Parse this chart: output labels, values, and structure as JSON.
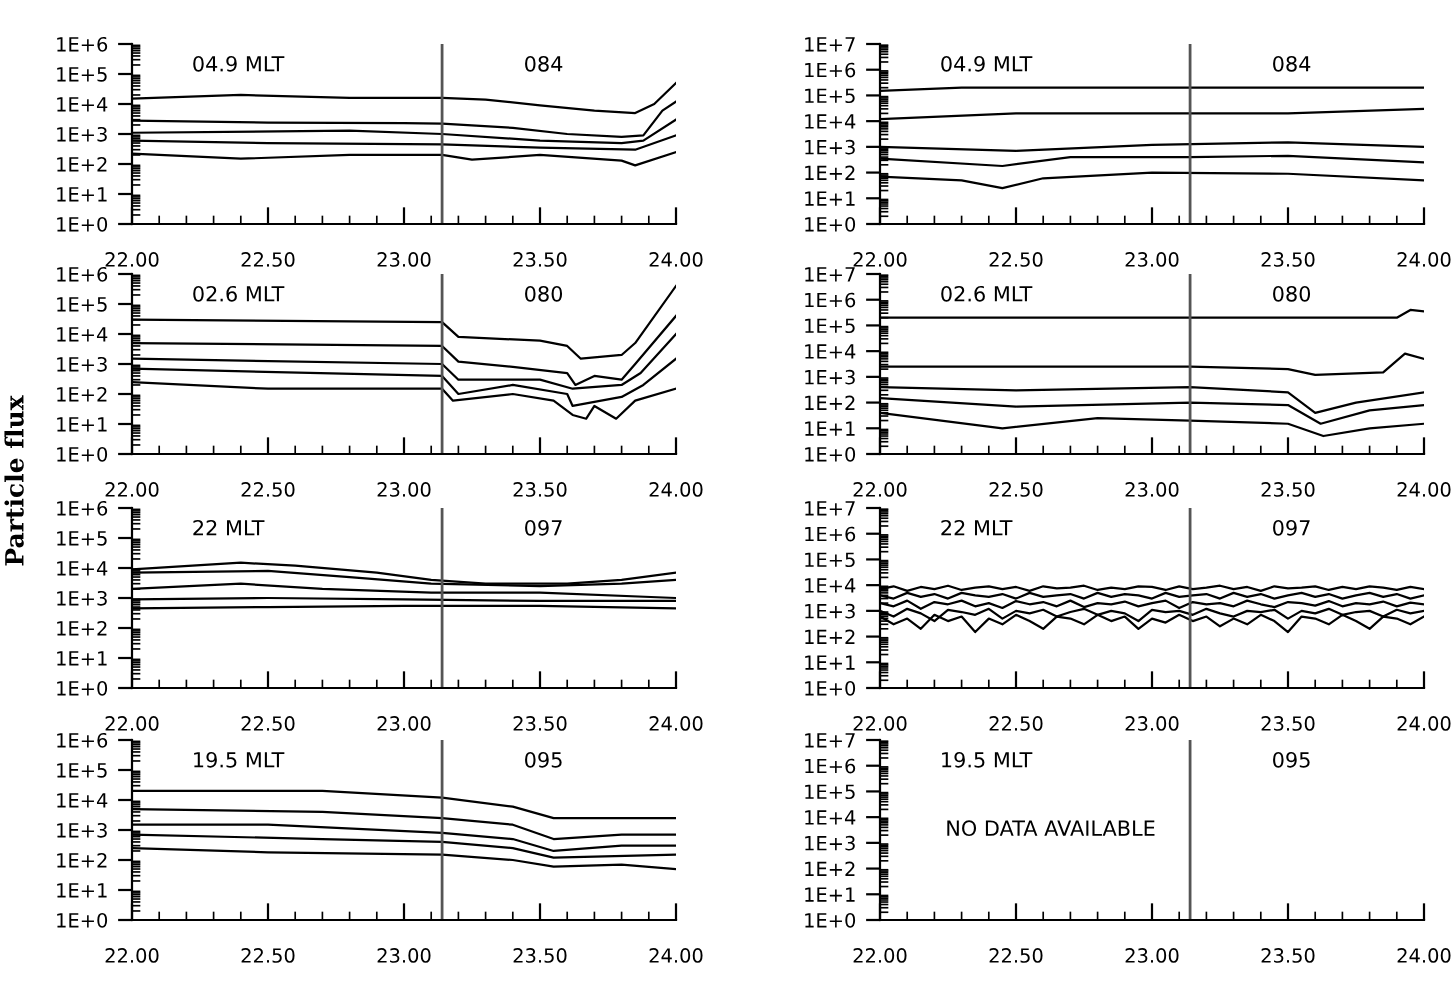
{
  "chart_data": [
    {
      "type": "line",
      "log": true,
      "xlim": [
        22,
        24
      ],
      "ylim": [
        1,
        1000000
      ],
      "xticks": [
        {
          "value": 22,
          "label": "22.00"
        },
        {
          "value": 22.5,
          "label": "22.50"
        },
        {
          "value": 23,
          "label": "23.00"
        },
        {
          "value": 23.5,
          "label": "23.50"
        },
        {
          "value": 24,
          "label": "24.00"
        }
      ],
      "yticks": [
        {
          "value": 1,
          "label": "1E+0"
        },
        {
          "value": 10,
          "label": "1E+1"
        },
        {
          "value": 100,
          "label": "1E+2"
        },
        {
          "value": 1000,
          "label": "1E+3"
        },
        {
          "value": 10000,
          "label": "1E+4"
        },
        {
          "value": 100000,
          "label": "1E+5"
        },
        {
          "value": 1000000,
          "label": "1E+6"
        }
      ],
      "annotations": [
        "04.9 MLT",
        "084"
      ],
      "ref_lines": [
        {
          "axis": "x",
          "value": 23.14,
          "color": "#555555"
        }
      ],
      "series": [
        {
          "color": "#000000",
          "x": [
            22,
            22.4,
            22.8,
            23.14,
            23.3,
            23.5,
            23.7,
            23.85,
            23.92,
            24
          ],
          "values": [
            15000,
            20000,
            16000,
            16000,
            14000,
            9000,
            6000,
            5000,
            10000,
            50000
          ]
        },
        {
          "color": "#000000",
          "x": [
            22,
            22.5,
            23,
            23.14,
            23.4,
            23.6,
            23.8,
            23.88,
            23.95,
            24
          ],
          "values": [
            2800,
            2400,
            2300,
            2200,
            1600,
            1000,
            800,
            900,
            6000,
            12000
          ]
        },
        {
          "color": "#000000",
          "x": [
            22,
            22.8,
            23.14,
            23.5,
            23.8,
            23.88,
            24
          ],
          "values": [
            1100,
            1300,
            1000,
            600,
            500,
            600,
            3000
          ]
        },
        {
          "color": "#000000",
          "x": [
            22,
            22.5,
            23.14,
            23.5,
            23.85,
            24
          ],
          "values": [
            600,
            500,
            450,
            350,
            300,
            900
          ]
        },
        {
          "color": "#000000",
          "x": [
            22,
            22.4,
            22.8,
            23.14,
            23.25,
            23.5,
            23.8,
            23.85,
            24
          ],
          "values": [
            220,
            150,
            200,
            200,
            140,
            200,
            130,
            90,
            250
          ]
        }
      ]
    },
    {
      "type": "line",
      "log": true,
      "xlim": [
        22,
        24
      ],
      "ylim": [
        1,
        10000000
      ],
      "xticks": [
        {
          "value": 22,
          "label": "22.00"
        },
        {
          "value": 22.5,
          "label": "22.50"
        },
        {
          "value": 23,
          "label": "23.00"
        },
        {
          "value": 23.5,
          "label": "23.50"
        },
        {
          "value": 24,
          "label": "24.00"
        }
      ],
      "yticks": [
        {
          "value": 1,
          "label": "1E+0"
        },
        {
          "value": 10,
          "label": "1E+1"
        },
        {
          "value": 100,
          "label": "1E+2"
        },
        {
          "value": 1000,
          "label": "1E+3"
        },
        {
          "value": 10000,
          "label": "1E+4"
        },
        {
          "value": 100000,
          "label": "1E+5"
        },
        {
          "value": 1000000,
          "label": "1E+6"
        },
        {
          "value": 10000000,
          "label": "1E+7"
        }
      ],
      "annotations": [
        "04.9 MLT",
        "084"
      ],
      "ref_lines": [
        {
          "axis": "x",
          "value": 23.14,
          "color": "#555555"
        }
      ],
      "series": [
        {
          "color": "#000000",
          "x": [
            22,
            22.3,
            23,
            24
          ],
          "values": [
            150000,
            200000,
            200000,
            200000
          ]
        },
        {
          "color": "#000000",
          "x": [
            22,
            22.5,
            23,
            23.5,
            24
          ],
          "values": [
            12000,
            20000,
            20000,
            20000,
            30000
          ]
        },
        {
          "color": "#000000",
          "x": [
            22,
            22.5,
            23,
            23.5,
            24
          ],
          "values": [
            1000,
            700,
            1200,
            1500,
            1000
          ]
        },
        {
          "color": "#000000",
          "x": [
            22,
            22.45,
            22.7,
            23.14,
            23.5,
            24
          ],
          "values": [
            350,
            180,
            400,
            400,
            450,
            250
          ]
        },
        {
          "color": "#000000",
          "x": [
            22,
            22.3,
            22.45,
            22.6,
            23,
            23.5,
            24
          ],
          "values": [
            70,
            50,
            25,
            60,
            100,
            90,
            50
          ]
        }
      ]
    },
    {
      "type": "line",
      "log": true,
      "xlim": [
        22,
        24
      ],
      "ylim": [
        1,
        1000000
      ],
      "xticks": [
        {
          "value": 22,
          "label": "22.00"
        },
        {
          "value": 22.5,
          "label": "22.50"
        },
        {
          "value": 23,
          "label": "23.00"
        },
        {
          "value": 23.5,
          "label": "23.50"
        },
        {
          "value": 24,
          "label": "24.00"
        }
      ],
      "yticks": [
        {
          "value": 1,
          "label": "1E+0"
        },
        {
          "value": 10,
          "label": "1E+1"
        },
        {
          "value": 100,
          "label": "1E+2"
        },
        {
          "value": 1000,
          "label": "1E+3"
        },
        {
          "value": 10000,
          "label": "1E+4"
        },
        {
          "value": 100000,
          "label": "1E+5"
        },
        {
          "value": 1000000,
          "label": "1E+6"
        }
      ],
      "annotations": [
        "02.6 MLT",
        "080"
      ],
      "ref_lines": [
        {
          "axis": "x",
          "value": 23.14,
          "color": "#555555"
        }
      ],
      "series": [
        {
          "color": "#000000",
          "x": [
            22,
            23.14,
            23.2,
            23.5,
            23.6,
            23.65,
            23.8,
            23.85,
            24
          ],
          "values": [
            30000,
            25000,
            8000,
            6000,
            4000,
            1500,
            2000,
            5000,
            400000
          ]
        },
        {
          "color": "#000000",
          "x": [
            22,
            23.14,
            23.2,
            23.4,
            23.6,
            23.63,
            23.7,
            23.8,
            23.85,
            24
          ],
          "values": [
            5000,
            4000,
            1200,
            800,
            500,
            200,
            400,
            300,
            1000,
            40000
          ]
        },
        {
          "color": "#000000",
          "x": [
            22,
            23.14,
            23.2,
            23.5,
            23.62,
            23.8,
            23.87,
            24
          ],
          "values": [
            1500,
            1000,
            300,
            300,
            150,
            200,
            500,
            10000
          ]
        },
        {
          "color": "#000000",
          "x": [
            22,
            23.14,
            23.2,
            23.4,
            23.6,
            23.62,
            23.8,
            23.88,
            24
          ],
          "values": [
            700,
            400,
            100,
            200,
            100,
            40,
            80,
            200,
            1500
          ]
        },
        {
          "color": "#000000",
          "x": [
            22,
            22.5,
            23.14,
            23.18,
            23.4,
            23.55,
            23.62,
            23.67,
            23.7,
            23.78,
            23.85,
            24
          ],
          "values": [
            250,
            150,
            150,
            60,
            100,
            60,
            20,
            15,
            40,
            15,
            60,
            150
          ]
        }
      ]
    },
    {
      "type": "line",
      "log": true,
      "xlim": [
        22,
        24
      ],
      "ylim": [
        1,
        10000000
      ],
      "xticks": [
        {
          "value": 22,
          "label": "22.00"
        },
        {
          "value": 22.5,
          "label": "22.50"
        },
        {
          "value": 23,
          "label": "23.00"
        },
        {
          "value": 23.5,
          "label": "23.50"
        },
        {
          "value": 24,
          "label": "24.00"
        }
      ],
      "yticks": [
        {
          "value": 1,
          "label": "1E+0"
        },
        {
          "value": 10,
          "label": "1E+1"
        },
        {
          "value": 100,
          "label": "1E+2"
        },
        {
          "value": 1000,
          "label": "1E+3"
        },
        {
          "value": 10000,
          "label": "1E+4"
        },
        {
          "value": 100000,
          "label": "1E+5"
        },
        {
          "value": 1000000,
          "label": "1E+6"
        },
        {
          "value": 10000000,
          "label": "1E+7"
        }
      ],
      "annotations": [
        "02.6 MLT",
        "080"
      ],
      "ref_lines": [
        {
          "axis": "x",
          "value": 23.14,
          "color": "#555555"
        }
      ],
      "series": [
        {
          "color": "#000000",
          "x": [
            22,
            23.14,
            23.9,
            23.95,
            24
          ],
          "values": [
            200000,
            200000,
            200000,
            400000,
            350000
          ]
        },
        {
          "color": "#000000",
          "x": [
            22,
            23.14,
            23.5,
            23.6,
            23.85,
            23.93,
            24
          ],
          "values": [
            2500,
            2500,
            2000,
            1200,
            1500,
            8000,
            5000
          ]
        },
        {
          "color": "#000000",
          "x": [
            22,
            22.5,
            23.14,
            23.5,
            23.6,
            23.75,
            24
          ],
          "values": [
            400,
            300,
            400,
            250,
            40,
            100,
            250
          ]
        },
        {
          "color": "#000000",
          "x": [
            22,
            22.5,
            23.14,
            23.5,
            23.62,
            23.8,
            24
          ],
          "values": [
            150,
            70,
            100,
            80,
            15,
            50,
            80
          ]
        },
        {
          "color": "#000000",
          "x": [
            22,
            22.45,
            22.8,
            23.14,
            23.5,
            23.63,
            23.8,
            24
          ],
          "values": [
            40,
            10,
            25,
            20,
            15,
            5,
            10,
            15
          ]
        }
      ]
    },
    {
      "type": "line",
      "log": true,
      "xlim": [
        22,
        24
      ],
      "ylim": [
        1,
        1000000
      ],
      "xticks": [
        {
          "value": 22,
          "label": "22.00"
        },
        {
          "value": 22.5,
          "label": "22.50"
        },
        {
          "value": 23,
          "label": "23.00"
        },
        {
          "value": 23.5,
          "label": "23.50"
        },
        {
          "value": 24,
          "label": "24.00"
        }
      ],
      "yticks": [
        {
          "value": 1,
          "label": "1E+0"
        },
        {
          "value": 10,
          "label": "1E+1"
        },
        {
          "value": 100,
          "label": "1E+2"
        },
        {
          "value": 1000,
          "label": "1E+3"
        },
        {
          "value": 10000,
          "label": "1E+4"
        },
        {
          "value": 100000,
          "label": "1E+5"
        },
        {
          "value": 1000000,
          "label": "1E+6"
        }
      ],
      "ylabel": "Particle flux",
      "annotations": [
        "22 MLT",
        "097"
      ],
      "ref_lines": [
        {
          "axis": "x",
          "value": 23.14,
          "color": "#555555"
        }
      ],
      "series": [
        {
          "color": "#000000",
          "x": [
            22,
            22.4,
            22.6,
            22.9,
            23.1,
            23.3,
            23.6,
            23.8,
            24
          ],
          "values": [
            9000,
            15000,
            12000,
            7000,
            4000,
            3000,
            3000,
            4000,
            7000
          ]
        },
        {
          "color": "#000000",
          "x": [
            22,
            22.5,
            22.8,
            23.1,
            23.5,
            23.8,
            24
          ],
          "values": [
            7000,
            8000,
            5000,
            3000,
            2500,
            3000,
            4000
          ]
        },
        {
          "color": "#000000",
          "x": [
            22,
            22.4,
            22.7,
            23.1,
            23.5,
            24
          ],
          "values": [
            2000,
            3000,
            2000,
            1500,
            1500,
            1000
          ]
        },
        {
          "color": "#000000",
          "x": [
            22,
            22.5,
            23,
            23.5,
            24
          ],
          "values": [
            900,
            1000,
            900,
            800,
            800
          ]
        },
        {
          "color": "#000000",
          "x": [
            22,
            22.5,
            23,
            23.5,
            24
          ],
          "values": [
            450,
            500,
            550,
            550,
            450
          ]
        }
      ]
    },
    {
      "type": "line",
      "log": true,
      "xlim": [
        22,
        24
      ],
      "ylim": [
        1,
        10000000
      ],
      "xticks": [
        {
          "value": 22,
          "label": "22.00"
        },
        {
          "value": 22.5,
          "label": "22.50"
        },
        {
          "value": 23,
          "label": "23.00"
        },
        {
          "value": 23.5,
          "label": "23.50"
        },
        {
          "value": 24,
          "label": "24.00"
        }
      ],
      "yticks": [
        {
          "value": 1,
          "label": "1E+0"
        },
        {
          "value": 10,
          "label": "1E+1"
        },
        {
          "value": 100,
          "label": "1E+2"
        },
        {
          "value": 1000,
          "label": "1E+3"
        },
        {
          "value": 10000,
          "label": "1E+4"
        },
        {
          "value": 100000,
          "label": "1E+5"
        },
        {
          "value": 1000000,
          "label": "1E+6"
        },
        {
          "value": 10000000,
          "label": "1E+7"
        }
      ],
      "annotations": [
        "22 MLT",
        "097"
      ],
      "ref_lines": [
        {
          "axis": "x",
          "value": 23.14,
          "color": "#555555"
        }
      ],
      "x": [
        22,
        22.05,
        22.1,
        22.15,
        22.2,
        22.25,
        22.3,
        22.35,
        22.4,
        22.45,
        22.5,
        22.55,
        22.6,
        22.65,
        22.7,
        22.75,
        22.8,
        22.85,
        22.9,
        22.95,
        23,
        23.05,
        23.1,
        23.15,
        23.2,
        23.25,
        23.3,
        23.35,
        23.4,
        23.45,
        23.5,
        23.55,
        23.6,
        23.65,
        23.7,
        23.75,
        23.8,
        23.85,
        23.9,
        23.95,
        24
      ],
      "series": [
        {
          "color": "#000000",
          "values": [
            7000,
            9000,
            6000,
            8500,
            7000,
            9500,
            6500,
            8000,
            9000,
            7000,
            8500,
            6000,
            9000,
            7500,
            8000,
            9500,
            6500,
            8000,
            7000,
            9000,
            8500,
            6500,
            9000,
            7000,
            8000,
            9500,
            7000,
            8500,
            6000,
            9000,
            7500,
            8000,
            9000,
            6500,
            8500,
            7000,
            9000,
            8000,
            6500,
            8500,
            7000
          ]
        },
        {
          "color": "#000000",
          "values": [
            4000,
            3000,
            5000,
            3500,
            4500,
            3000,
            5000,
            4000,
            3500,
            4500,
            3000,
            5000,
            3500,
            4000,
            4500,
            3000,
            5000,
            3500,
            4500,
            4000,
            3000,
            5000,
            3500,
            4000,
            4500,
            3000,
            5000,
            3500,
            4500,
            3000,
            4000,
            5000,
            3500,
            4500,
            3000,
            4000,
            5000,
            3500,
            4500,
            3000,
            4000
          ]
        },
        {
          "color": "#000000",
          "values": [
            2000,
            1500,
            2500,
            1200,
            2200,
            1800,
            2500,
            1500,
            2000,
            1300,
            2400,
            1800,
            2200,
            1500,
            2500,
            1400,
            2000,
            1800,
            2300,
            1500,
            2000,
            2500,
            1300,
            2200,
            1800,
            2000,
            1500,
            2500,
            1800,
            1400,
            2200,
            2000,
            1600,
            2400,
            1500,
            2000,
            1800,
            2300,
            1500,
            2100,
            1800
          ]
        },
        {
          "color": "#000000",
          "values": [
            1000,
            600,
            1200,
            800,
            400,
            1100,
            900,
            700,
            1200,
            500,
            1000,
            800,
            1100,
            600,
            900,
            1200,
            700,
            1000,
            800,
            400,
            1100,
            900,
            1000,
            700,
            1200,
            800,
            600,
            1000,
            900,
            1100,
            500,
            1000,
            800,
            1200,
            700,
            900,
            1000,
            600,
            1100,
            800,
            1000
          ]
        },
        {
          "color": "#000000",
          "values": [
            600,
            300,
            500,
            200,
            700,
            400,
            600,
            150,
            500,
            300,
            700,
            400,
            200,
            600,
            500,
            300,
            700,
            400,
            600,
            200,
            500,
            350,
            700,
            400,
            600,
            250,
            500,
            300,
            700,
            400,
            150,
            600,
            500,
            300,
            700,
            400,
            200,
            600,
            500,
            300,
            600
          ]
        }
      ]
    },
    {
      "type": "line",
      "log": true,
      "xlim": [
        22,
        24
      ],
      "ylim": [
        1,
        1000000
      ],
      "xticks": [
        {
          "value": 22,
          "label": "22.00"
        },
        {
          "value": 22.5,
          "label": "22.50"
        },
        {
          "value": 23,
          "label": "23.00"
        },
        {
          "value": 23.5,
          "label": "23.50"
        },
        {
          "value": 24,
          "label": "24.00"
        }
      ],
      "yticks": [
        {
          "value": 1,
          "label": "1E+0"
        },
        {
          "value": 10,
          "label": "1E+1"
        },
        {
          "value": 100,
          "label": "1E+2"
        },
        {
          "value": 1000,
          "label": "1E+3"
        },
        {
          "value": 10000,
          "label": "1E+4"
        },
        {
          "value": 100000,
          "label": "1E+5"
        },
        {
          "value": 1000000,
          "label": "1E+6"
        }
      ],
      "annotations": [
        "19.5 MLT",
        "095"
      ],
      "ref_lines": [
        {
          "axis": "x",
          "value": 23.14,
          "color": "#555555"
        }
      ],
      "series": [
        {
          "color": "#000000",
          "x": [
            22,
            22.7,
            23.14,
            23.4,
            23.55,
            24
          ],
          "values": [
            20000,
            20000,
            12000,
            6000,
            2500,
            2500
          ]
        },
        {
          "color": "#000000",
          "x": [
            22,
            22.7,
            23.14,
            23.4,
            23.55,
            23.8,
            24
          ],
          "values": [
            5000,
            4000,
            2500,
            1500,
            500,
            700,
            700
          ]
        },
        {
          "color": "#000000",
          "x": [
            22,
            22.5,
            23.14,
            23.4,
            23.55,
            23.8,
            24
          ],
          "values": [
            1500,
            1500,
            800,
            500,
            200,
            300,
            300
          ]
        },
        {
          "color": "#000000",
          "x": [
            22,
            22.7,
            23.14,
            23.4,
            23.55,
            24
          ],
          "values": [
            700,
            500,
            400,
            250,
            120,
            150
          ]
        },
        {
          "color": "#000000",
          "x": [
            22,
            22.5,
            23.14,
            23.4,
            23.55,
            23.8,
            24
          ],
          "values": [
            250,
            180,
            150,
            100,
            60,
            70,
            50
          ]
        }
      ]
    },
    {
      "type": "line",
      "log": true,
      "xlim": [
        22,
        24
      ],
      "ylim": [
        1,
        10000000
      ],
      "xticks": [
        {
          "value": 22,
          "label": "22.00"
        },
        {
          "value": 22.5,
          "label": "22.50"
        },
        {
          "value": 23,
          "label": "23.00"
        },
        {
          "value": 23.5,
          "label": "23.50"
        },
        {
          "value": 24,
          "label": "24.00"
        }
      ],
      "yticks": [
        {
          "value": 1,
          "label": "1E+0"
        },
        {
          "value": 10,
          "label": "1E+1"
        },
        {
          "value": 100,
          "label": "1E+2"
        },
        {
          "value": 1000,
          "label": "1E+3"
        },
        {
          "value": 10000,
          "label": "1E+4"
        },
        {
          "value": 100000,
          "label": "1E+5"
        },
        {
          "value": 1000000,
          "label": "1E+6"
        },
        {
          "value": 10000000,
          "label": "1E+7"
        }
      ],
      "annotations": [
        "19.5 MLT",
        "095",
        "NO DATA AVAILABLE"
      ],
      "ref_lines": [
        {
          "axis": "x",
          "value": 23.14,
          "color": "#555555"
        }
      ]
    }
  ]
}
